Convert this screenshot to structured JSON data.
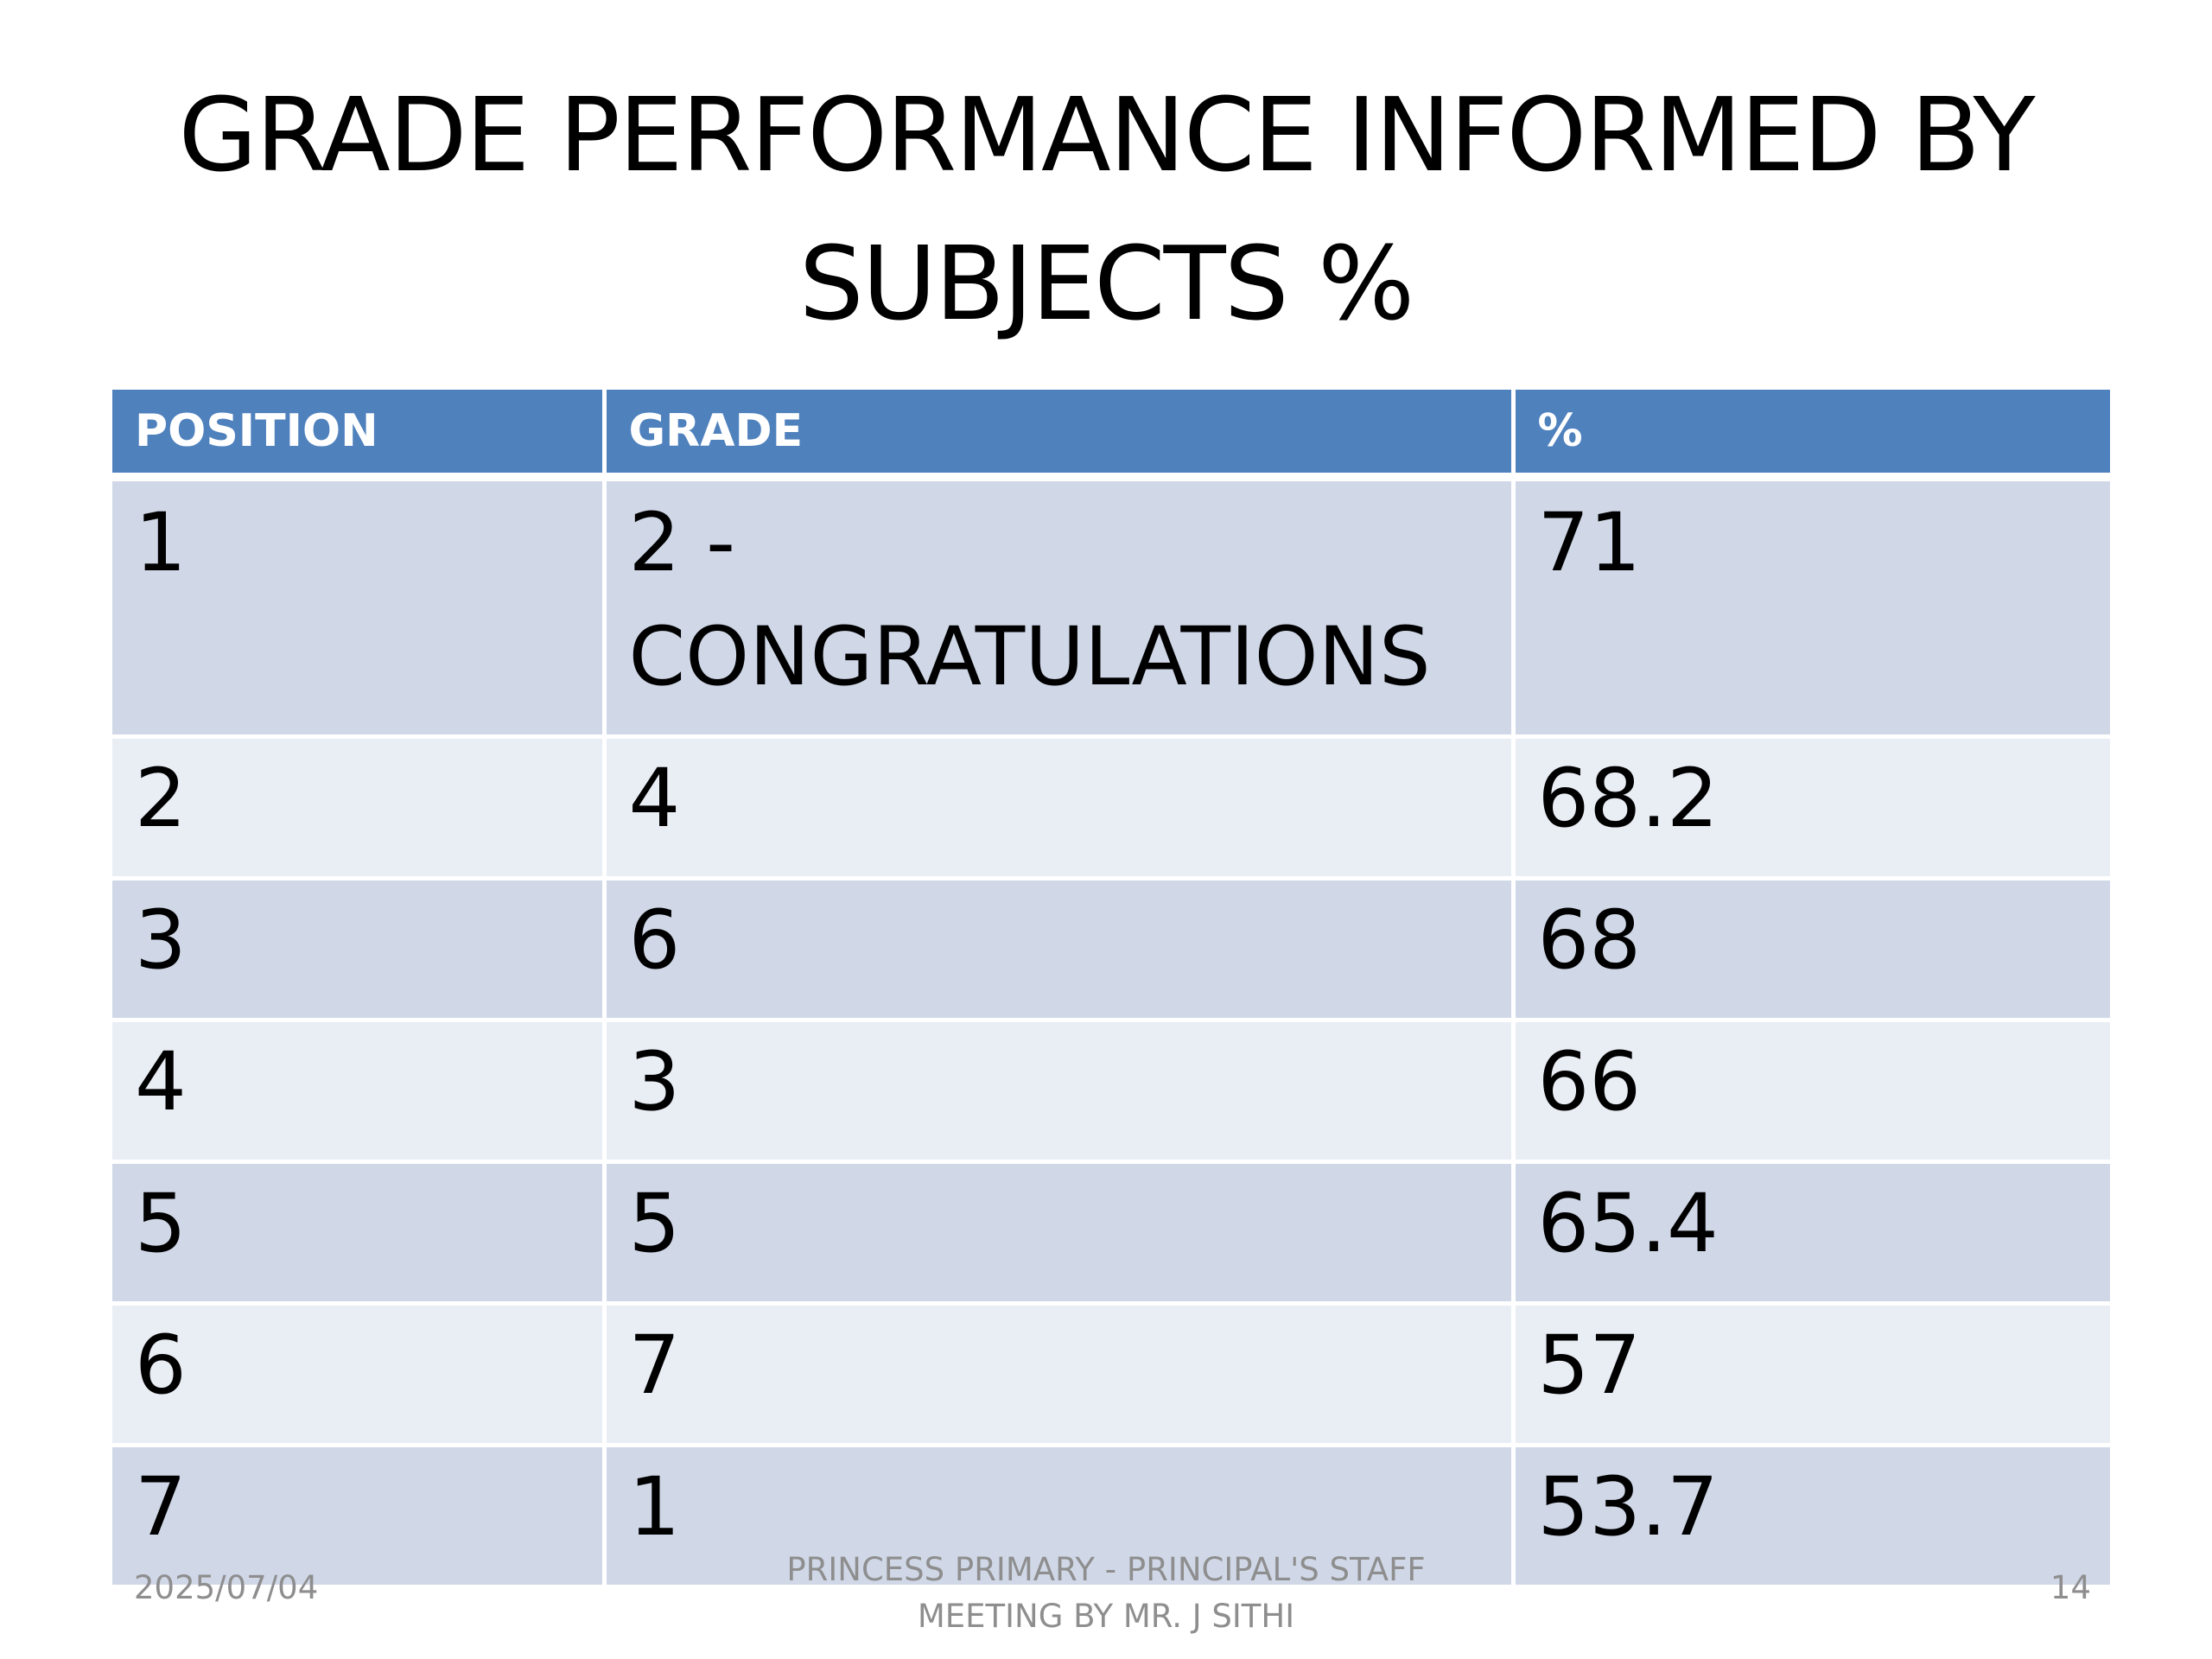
{
  "slide": {
    "title_lines": [
      "GRADE PERFORMANCE INFORMED BY",
      "SUBJECTS %"
    ]
  },
  "table": {
    "headers": [
      "POSITION",
      "GRADE",
      "%"
    ],
    "rows": [
      {
        "position": "1",
        "grade_lines": [
          "2 -",
          "CONGRATULATIONS"
        ],
        "percent": "71"
      },
      {
        "position": "2",
        "grade": "4",
        "percent": "68.2"
      },
      {
        "position": "3",
        "grade": "6",
        "percent": "68"
      },
      {
        "position": "4",
        "grade": "3",
        "percent": "66"
      },
      {
        "position": "5",
        "grade": "5",
        "percent": "65.4"
      },
      {
        "position": "6",
        "grade": "7",
        "percent": "57"
      },
      {
        "position": "7",
        "grade": "1",
        "percent": "53.7"
      }
    ],
    "colors": {
      "header_bg": "#4f81bd",
      "row_band_dark": "#d0d8e8",
      "row_band_light": "#e9edf4"
    }
  },
  "footer": {
    "date": "2025/07/04",
    "center_lines": [
      "PRINCESS PRIMARY - PRINCIPAL'S STAFF",
      "MEETING BY MR. J SITHI"
    ],
    "page_number": "14"
  }
}
